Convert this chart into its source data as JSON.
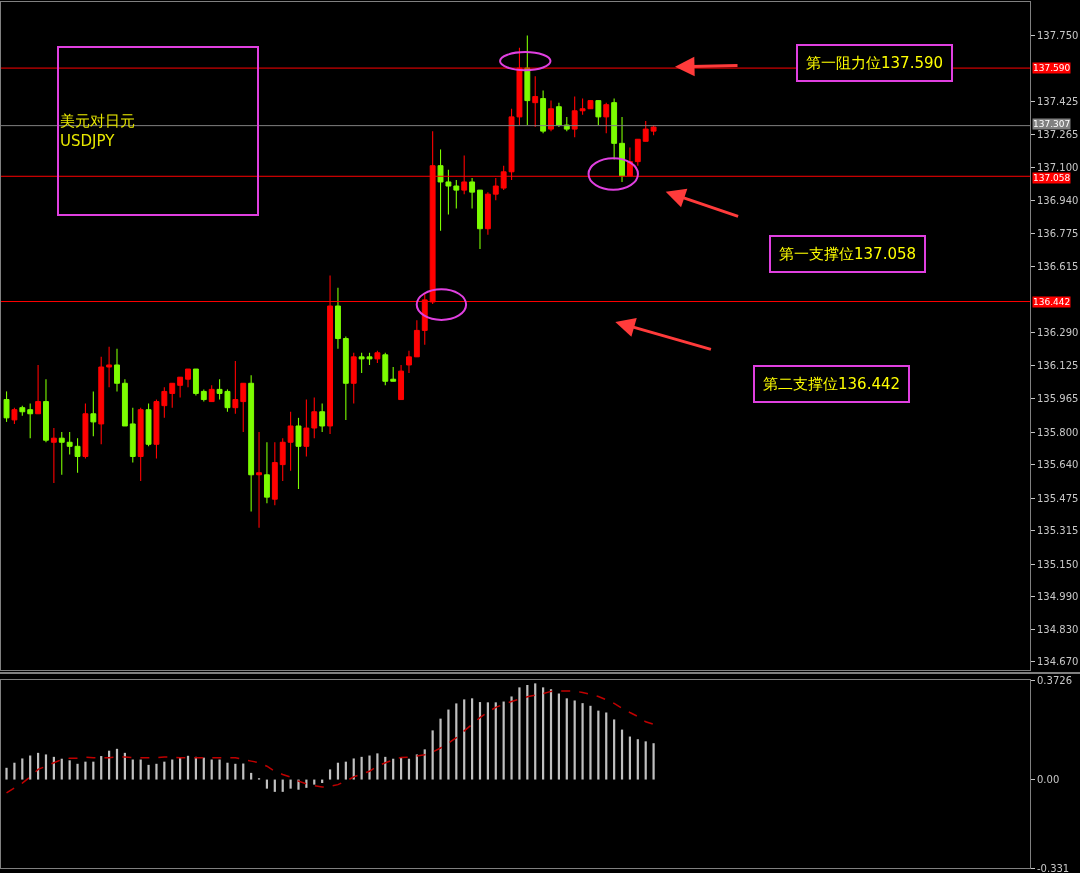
{
  "chart_data": [
    {
      "type": "candlestick",
      "title": "美元对日元\nUSDJPY",
      "categories": [
        null,
        null,
        null,
        null,
        null,
        null,
        null,
        null,
        null,
        null,
        null,
        null,
        null,
        null,
        null,
        null,
        null,
        null,
        null,
        null,
        null,
        null,
        null,
        null,
        null,
        null,
        null,
        null,
        null,
        null,
        null,
        null,
        null,
        null,
        null,
        null,
        null,
        null,
        null,
        null,
        null,
        null,
        null,
        null,
        null,
        null,
        null,
        null,
        null,
        null,
        null,
        null,
        null,
        null,
        null,
        null,
        null,
        null,
        null,
        null,
        null,
        null,
        null,
        null,
        null,
        null,
        null,
        null,
        null,
        null,
        null,
        null,
        null,
        null,
        null,
        null,
        null,
        null,
        null,
        null,
        null,
        null,
        null,
        null,
        null,
        null,
        null,
        null,
        null,
        null,
        null,
        null,
        null,
        null,
        null,
        null,
        null,
        null,
        null,
        null,
        null,
        null,
        null,
        null,
        null,
        null,
        null,
        null,
        null,
        null,
        null,
        null,
        null,
        null,
        null,
        null,
        null,
        null,
        null,
        null,
        null,
        null,
        null,
        null,
        null,
        null,
        null,
        null,
        null,
        null
      ],
      "ohlc": [
        [
          135.96,
          136.0,
          135.85,
          135.87
        ],
        [
          135.86,
          135.92,
          135.84,
          135.91
        ],
        [
          135.92,
          135.93,
          135.88,
          135.9
        ],
        [
          135.91,
          135.94,
          135.77,
          135.89
        ],
        [
          135.89,
          136.13,
          135.89,
          135.95
        ],
        [
          135.95,
          136.06,
          135.75,
          135.76
        ],
        [
          135.75,
          135.82,
          135.55,
          135.77
        ],
        [
          135.77,
          135.8,
          135.59,
          135.75
        ],
        [
          135.75,
          135.8,
          135.69,
          135.73
        ],
        [
          135.73,
          135.77,
          135.6,
          135.68
        ],
        [
          135.68,
          135.94,
          135.67,
          135.89
        ],
        [
          135.89,
          136.0,
          135.78,
          135.85
        ],
        [
          135.84,
          136.17,
          135.74,
          136.12
        ],
        [
          136.12,
          136.22,
          136.02,
          136.13
        ],
        [
          136.13,
          136.21,
          136.0,
          136.04
        ],
        [
          136.04,
          136.06,
          135.83,
          135.83
        ],
        [
          135.84,
          135.92,
          135.65,
          135.68
        ],
        [
          135.68,
          135.92,
          135.56,
          135.91
        ],
        [
          135.91,
          135.94,
          135.73,
          135.74
        ],
        [
          135.74,
          135.96,
          135.67,
          135.95
        ],
        [
          135.93,
          136.02,
          135.87,
          136.0
        ],
        [
          135.99,
          136.04,
          135.92,
          136.04
        ],
        [
          136.03,
          136.07,
          135.97,
          136.07
        ],
        [
          136.06,
          136.11,
          136.02,
          136.11
        ],
        [
          136.11,
          136.11,
          135.98,
          135.99
        ],
        [
          136.0,
          136.01,
          135.95,
          135.96
        ],
        [
          135.95,
          136.03,
          135.95,
          136.01
        ],
        [
          136.01,
          136.06,
          135.96,
          135.99
        ],
        [
          136.0,
          136.01,
          135.9,
          135.92
        ],
        [
          135.92,
          136.15,
          135.89,
          135.96
        ],
        [
          135.95,
          136.04,
          135.8,
          136.04
        ],
        [
          136.04,
          136.08,
          135.41,
          135.59
        ],
        [
          135.59,
          135.8,
          135.33,
          135.6
        ],
        [
          135.59,
          135.75,
          135.45,
          135.48
        ],
        [
          135.47,
          135.75,
          135.44,
          135.65
        ],
        [
          135.64,
          135.77,
          135.56,
          135.75
        ],
        [
          135.75,
          135.9,
          135.61,
          135.83
        ],
        [
          135.83,
          135.87,
          135.52,
          135.73
        ],
        [
          135.73,
          135.96,
          135.68,
          135.82
        ],
        [
          135.82,
          135.97,
          135.77,
          135.9
        ],
        [
          135.9,
          135.94,
          135.8,
          135.83
        ],
        [
          135.83,
          136.57,
          135.79,
          136.42
        ],
        [
          136.42,
          136.51,
          136.21,
          136.26
        ],
        [
          136.26,
          136.27,
          135.86,
          136.04
        ],
        [
          136.04,
          136.19,
          135.94,
          136.17
        ],
        [
          136.17,
          136.19,
          136.09,
          136.16
        ],
        [
          136.17,
          136.19,
          136.13,
          136.16
        ],
        [
          136.16,
          136.2,
          136.14,
          136.19
        ],
        [
          136.18,
          136.19,
          136.03,
          136.05
        ],
        [
          136.06,
          136.12,
          136.05,
          136.05
        ],
        [
          135.96,
          136.13,
          135.96,
          136.1
        ],
        [
          136.13,
          136.2,
          136.09,
          136.17
        ],
        [
          136.17,
          136.35,
          136.17,
          136.3
        ],
        [
          136.3,
          136.48,
          136.23,
          136.45
        ],
        [
          136.44,
          137.28,
          136.43,
          137.11
        ],
        [
          137.11,
          137.19,
          136.79,
          137.03
        ],
        [
          137.03,
          137.09,
          136.87,
          137.01
        ],
        [
          137.01,
          137.04,
          136.9,
          136.99
        ],
        [
          136.99,
          137.16,
          136.97,
          137.03
        ],
        [
          137.03,
          137.05,
          136.9,
          136.98
        ],
        [
          136.99,
          136.99,
          136.7,
          136.8
        ],
        [
          136.8,
          136.98,
          136.77,
          136.97
        ],
        [
          136.97,
          137.05,
          136.94,
          137.01
        ],
        [
          137.0,
          137.11,
          136.99,
          137.08
        ],
        [
          137.08,
          137.39,
          137.04,
          137.35
        ],
        [
          137.35,
          137.69,
          137.31,
          137.59
        ],
        [
          137.59,
          137.75,
          137.31,
          137.43
        ],
        [
          137.42,
          137.55,
          137.3,
          137.45
        ],
        [
          137.44,
          137.48,
          137.27,
          137.28
        ],
        [
          137.29,
          137.43,
          137.28,
          137.39
        ],
        [
          137.4,
          137.42,
          137.3,
          137.31
        ],
        [
          137.31,
          137.35,
          137.28,
          137.29
        ],
        [
          137.29,
          137.45,
          137.25,
          137.38
        ],
        [
          137.38,
          137.44,
          137.36,
          137.39
        ],
        [
          137.39,
          137.43,
          137.39,
          137.43
        ],
        [
          137.43,
          137.43,
          137.31,
          137.35
        ],
        [
          137.35,
          137.42,
          137.27,
          137.41
        ],
        [
          137.42,
          137.44,
          137.14,
          137.22
        ],
        [
          137.22,
          137.35,
          137.03,
          137.06
        ],
        [
          137.06,
          137.2,
          137.06,
          137.13
        ],
        [
          137.13,
          137.24,
          137.11,
          137.24
        ],
        [
          137.23,
          137.33,
          137.23,
          137.29
        ],
        [
          137.28,
          137.31,
          137.26,
          137.3
        ],
        null,
        null,
        null,
        null,
        null,
        null,
        null,
        null,
        null,
        null,
        null,
        null,
        null,
        null,
        null,
        null,
        null,
        null,
        null,
        null,
        null,
        null,
        null,
        null,
        null,
        null,
        null,
        null,
        null,
        null,
        null,
        null,
        null,
        null,
        null,
        null,
        null,
        null,
        null,
        null,
        null,
        null,
        null,
        null,
        null,
        null,
        null
      ],
      "colors": [
        "#7cfc00",
        "#ff0000",
        "#7cfc00",
        "#7cfc00",
        "#ff0000",
        "#7cfc00",
        "#ff0000",
        "#7cfc00",
        "#7cfc00",
        "#7cfc00",
        "#ff0000",
        "#7cfc00",
        "#ff0000",
        "#ff0000",
        "#7cfc00",
        "#7cfc00",
        "#7cfc00",
        "#ff0000",
        "#7cfc00",
        "#ff0000",
        "#ff0000",
        "#ff0000",
        "#ff0000",
        "#ff0000",
        "#7cfc00",
        "#7cfc00",
        "#ff0000",
        "#7cfc00",
        "#7cfc00",
        "#ff0000",
        "#ff0000",
        "#7cfc00",
        "#ff0000",
        "#7cfc00",
        "#ff0000",
        "#ff0000",
        "#ff0000",
        "#7cfc00",
        "#ff0000",
        "#ff0000",
        "#7cfc00",
        "#ff0000",
        "#7cfc00",
        "#7cfc00",
        "#ff0000",
        "#7cfc00",
        "#7cfc00",
        "#ff0000",
        "#7cfc00",
        "#7cfc00",
        "#ff0000",
        "#ff0000",
        "#ff0000",
        "#ff0000",
        "#ff0000",
        "#7cfc00",
        "#7cfc00",
        "#7cfc00",
        "#ff0000",
        "#7cfc00",
        "#7cfc00",
        "#ff0000",
        "#ff0000",
        "#ff0000",
        "#ff0000",
        "#ff0000",
        "#7cfc00",
        "#ff0000",
        "#7cfc00",
        "#ff0000",
        "#7cfc00",
        "#7cfc00",
        "#ff0000",
        "#ff0000",
        "#ff0000",
        "#7cfc00",
        "#ff0000",
        "#7cfc00",
        "#7cfc00",
        "#ff0000",
        "#ff0000",
        "#ff0000",
        "#ff0000",
        null,
        null,
        null,
        null,
        null,
        null,
        null,
        null,
        null,
        null,
        null,
        null,
        null,
        null,
        null,
        null,
        null,
        null,
        null,
        null,
        null,
        null,
        null,
        null,
        null,
        null,
        null,
        null,
        null,
        null,
        null,
        null,
        null,
        null,
        null,
        null,
        null,
        null,
        null,
        null,
        null,
        null,
        null,
        null,
        null,
        null,
        null
      ],
      "ylim": [
        134.63,
        137.915
      ],
      "yticks": [
        {
          "value": 137.75,
          "label": "137.750"
        },
        137.425,
        137.265,
        {
          "value": 137.1,
          "label": "137.100"
        },
        {
          "value": 136.94,
          "label": "136.940"
        },
        136.775,
        136.615,
        {
          "value": 136.29,
          "label": "136.290"
        },
        136.125,
        135.965,
        {
          "value": 135.8,
          "label": "135.800"
        },
        {
          "value": 135.64,
          "label": "135.640"
        },
        135.475,
        135.315,
        {
          "value": 135.15,
          "label": "135.150"
        },
        {
          "value": 134.99,
          "label": "134.990"
        },
        {
          "value": 134.83,
          "label": "134.830"
        },
        {
          "value": 134.67,
          "label": "134.670"
        }
      ],
      "ref_lines": [
        {
          "axis": "y",
          "value": 137.59,
          "label": "137.590",
          "color": "#ff0000"
        },
        {
          "axis": "y",
          "value": 137.307,
          "label": "137.307",
          "color": "#808080"
        },
        {
          "axis": "y",
          "value": 137.058,
          "label": "137.058",
          "color": "#ff0000"
        },
        {
          "axis": "y",
          "value": 136.442,
          "label": "136.442",
          "color": "#ff0000"
        }
      ],
      "annotations": [
        "第一阻力位137.590",
        "第一支撑位137.058",
        "第二支撑位136.442"
      ],
      "tick_labels": "y",
      "grid": false
    },
    {
      "type": "bar",
      "categories": [
        null,
        null,
        null,
        null,
        null,
        null,
        null,
        null,
        null,
        null,
        null,
        null,
        null,
        null,
        null,
        null,
        null,
        null,
        null,
        null,
        null,
        null,
        null,
        null,
        null,
        null,
        null,
        null,
        null,
        null,
        null,
        null,
        null,
        null,
        null,
        null,
        null,
        null,
        null,
        null,
        null,
        null,
        null,
        null,
        null,
        null,
        null,
        null,
        null,
        null,
        null,
        null,
        null,
        null,
        null,
        null,
        null,
        null,
        null,
        null,
        null,
        null,
        null,
        null,
        null,
        null,
        null,
        null,
        null,
        null,
        null,
        null,
        null,
        null,
        null,
        null,
        null,
        null,
        null,
        null,
        null,
        null,
        null,
        null,
        null,
        null,
        null,
        null,
        null,
        null,
        null,
        null,
        null,
        null,
        null,
        null,
        null,
        null,
        null,
        null,
        null,
        null,
        null,
        null,
        null,
        null,
        null,
        null,
        null,
        null,
        null,
        null,
        null,
        null,
        null,
        null,
        null,
        null,
        null,
        null,
        null,
        null,
        null,
        null,
        null,
        null,
        null,
        null,
        null,
        null
      ],
      "series": [
        {
          "type": "bar",
          "color": "#c0c0c0",
          "values": [
            0.044,
            0.063,
            0.079,
            0.09,
            0.1,
            0.094,
            0.085,
            0.078,
            0.072,
            0.059,
            0.067,
            0.067,
            0.088,
            0.108,
            0.115,
            0.1,
            0.075,
            0.075,
            0.055,
            0.059,
            0.067,
            0.075,
            0.082,
            0.089,
            0.085,
            0.082,
            0.075,
            0.075,
            0.063,
            0.059,
            0.06,
            0.025,
            0.005,
            -0.034,
            -0.046,
            -0.046,
            -0.034,
            -0.038,
            -0.031,
            -0.019,
            -0.013,
            0.038,
            0.063,
            0.067,
            0.079,
            0.085,
            0.09,
            0.098,
            0.085,
            0.078,
            0.082,
            0.078,
            0.094,
            0.113,
            0.184,
            0.228,
            0.262,
            0.285,
            0.3,
            0.304,
            0.29,
            0.289,
            0.289,
            0.292,
            0.311,
            0.345,
            0.354,
            0.36,
            0.345,
            0.338,
            0.322,
            0.304,
            0.296,
            0.286,
            0.276,
            0.258,
            0.251,
            0.225,
            0.187,
            0.161,
            0.151,
            0.143,
            0.136,
            null,
            null,
            null,
            null,
            null,
            null,
            null,
            null,
            null,
            null,
            null,
            null,
            null,
            null,
            null,
            null,
            null,
            null,
            null,
            null,
            null,
            null,
            null,
            null,
            null,
            null,
            null,
            null,
            null,
            null,
            null,
            null,
            null,
            null,
            null,
            null,
            null,
            null,
            null,
            null,
            null,
            null,
            null,
            null,
            null,
            null,
            null
          ]
        },
        {
          "type": "line",
          "color": "#c00000",
          "line_style": "dashed",
          "marker": "none",
          "values": [
            -0.05,
            -0.031,
            -0.013,
            0.01,
            0.038,
            0.05,
            0.063,
            0.075,
            0.08,
            0.08,
            0.084,
            0.082,
            0.082,
            0.082,
            0.084,
            0.084,
            0.082,
            0.082,
            0.082,
            0.082,
            0.084,
            0.084,
            0.082,
            0.082,
            0.082,
            0.082,
            0.082,
            0.082,
            0.082,
            0.082,
            0.075,
            0.069,
            0.063,
            0.05,
            0.031,
            0.019,
            0.009,
            -0.006,
            -0.016,
            -0.023,
            -0.028,
            -0.025,
            -0.019,
            -0.006,
            0.01,
            0.021,
            0.031,
            0.05,
            0.063,
            0.073,
            0.083,
            0.084,
            0.088,
            0.093,
            0.103,
            0.118,
            0.136,
            0.157,
            0.182,
            0.207,
            0.232,
            0.253,
            0.27,
            0.282,
            0.292,
            0.301,
            0.31,
            0.316,
            0.322,
            0.33,
            0.331,
            0.331,
            0.331,
            0.326,
            0.319,
            0.311,
            0.299,
            0.285,
            0.267,
            0.251,
            0.236,
            0.216,
            0.207,
            null,
            null,
            null,
            null,
            null,
            null,
            null,
            null,
            null,
            null,
            null,
            null,
            null,
            null,
            null,
            null,
            null,
            null,
            null,
            null,
            null,
            null,
            null,
            null,
            null,
            null,
            null,
            null,
            null,
            null,
            null,
            null,
            null,
            null,
            null,
            null,
            null,
            null,
            null,
            null,
            null,
            null,
            null,
            null,
            null,
            null,
            null
          ]
        }
      ],
      "ylim": [
        -0.331,
        0.3726
      ],
      "yticks": [
        0.3726,
        {
          "value": 0,
          "label": "0.00"
        },
        -0.331
      ],
      "tick_labels": "y",
      "grid": false
    }
  ]
}
